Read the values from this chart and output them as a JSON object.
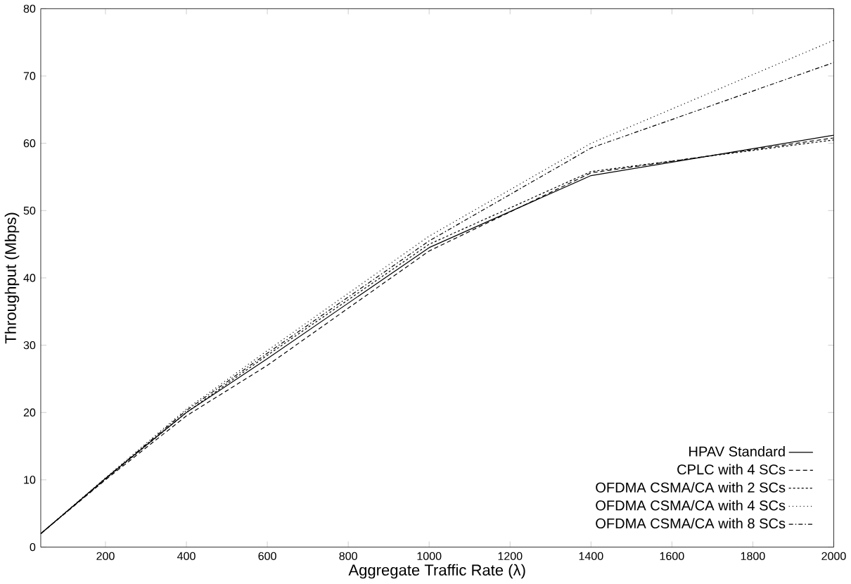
{
  "chart_data": {
    "type": "line",
    "xlabel": "Aggregate Traffic Rate (λ)",
    "ylabel": "Throughput (Mbps)",
    "x": [
      40,
      200,
      400,
      600,
      1000,
      1400,
      2000
    ],
    "xlim": [
      40,
      2000
    ],
    "xticks": [
      200,
      400,
      600,
      800,
      1000,
      1200,
      1400,
      1600,
      1800,
      2000
    ],
    "ylim": [
      0,
      80
    ],
    "yticks": [
      0,
      10,
      20,
      30,
      40,
      50,
      60,
      70,
      80
    ],
    "grid": false,
    "legend": "bottom right",
    "marker": "none",
    "series": [
      {
        "name": "HPAV Standard",
        "color": "#000000",
        "line_style": "solid",
        "values": [
          2,
          10.2,
          20,
          28,
          44.5,
          55.2,
          61.2
        ]
      },
      {
        "name": "CPLC with 4 SCs",
        "color": "#000000",
        "line_style": "dashed",
        "values": [
          2,
          10,
          19.5,
          27,
          44,
          55.6,
          60.8
        ]
      },
      {
        "name": "OFDMA CSMA/CA with 2 SCs",
        "color": "#000000",
        "line_style": "densely dashed",
        "values": [
          2,
          10.1,
          20,
          28.5,
          45,
          55.8,
          60.5
        ]
      },
      {
        "name": "OFDMA CSMA/CA with 4 SCs",
        "color": "#000000",
        "line_style": "dotted",
        "values": [
          2,
          10.3,
          20.5,
          29.2,
          46.2,
          60,
          75.3
        ]
      },
      {
        "name": "OFDMA CSMA/CA with 8 SCs",
        "color": "#000000",
        "line_style": "dashdot",
        "values": [
          2,
          10.2,
          20.3,
          28.8,
          45.5,
          59.3,
          72
        ]
      }
    ]
  }
}
